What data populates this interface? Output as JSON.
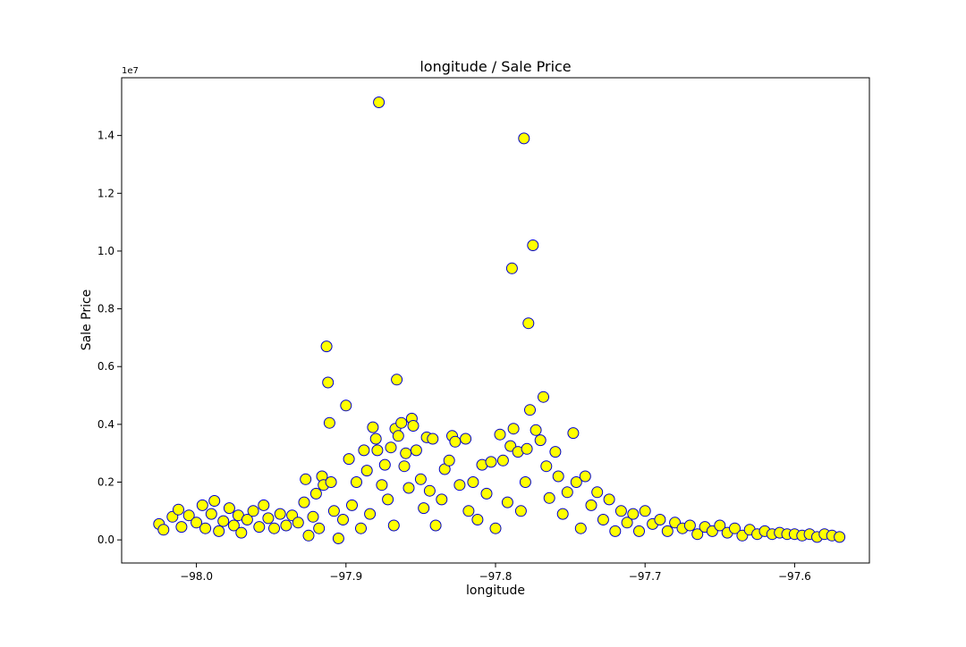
{
  "chart_data": {
    "type": "scatter",
    "title": "longitude / Sale Price",
    "xlabel": "longitude",
    "ylabel": "Sale Price",
    "y_offset_label": "1e7",
    "xlim": [
      -98.05,
      -97.55
    ],
    "ylim": [
      -0.08,
      1.6
    ],
    "x_ticks": [
      -98.0,
      -97.9,
      -97.8,
      -97.7,
      -97.6
    ],
    "x_tick_labels": [
      "−98.0",
      "−97.9",
      "−97.8",
      "−97.7",
      "−97.6"
    ],
    "y_ticks": [
      0.0,
      0.2,
      0.4,
      0.6,
      0.8,
      1.0,
      1.2,
      1.4
    ],
    "y_tick_labels": [
      "0.0",
      "0.2",
      "0.4",
      "0.6",
      "0.8",
      "1.0",
      "1.2",
      "1.4"
    ],
    "grid": false,
    "marker_fill": "#ffff00",
    "marker_edge": "#0000cc",
    "points": [
      [
        -98.025,
        0.055
      ],
      [
        -98.022,
        0.035
      ],
      [
        -98.016,
        0.08
      ],
      [
        -98.012,
        0.105
      ],
      [
        -98.01,
        0.045
      ],
      [
        -98.005,
        0.085
      ],
      [
        -98.0,
        0.06
      ],
      [
        -97.996,
        0.12
      ],
      [
        -97.994,
        0.04
      ],
      [
        -97.99,
        0.09
      ],
      [
        -97.988,
        0.135
      ],
      [
        -97.985,
        0.03
      ],
      [
        -97.982,
        0.065
      ],
      [
        -97.978,
        0.11
      ],
      [
        -97.975,
        0.05
      ],
      [
        -97.972,
        0.085
      ],
      [
        -97.97,
        0.025
      ],
      [
        -97.966,
        0.07
      ],
      [
        -97.962,
        0.1
      ],
      [
        -97.958,
        0.045
      ],
      [
        -97.955,
        0.12
      ],
      [
        -97.952,
        0.075
      ],
      [
        -97.948,
        0.04
      ],
      [
        -97.944,
        0.09
      ],
      [
        -97.94,
        0.05
      ],
      [
        -97.936,
        0.085
      ],
      [
        -97.932,
        0.06
      ],
      [
        -97.928,
        0.13
      ],
      [
        -97.927,
        0.21
      ],
      [
        -97.925,
        0.015
      ],
      [
        -97.922,
        0.08
      ],
      [
        -97.92,
        0.16
      ],
      [
        -97.918,
        0.04
      ],
      [
        -97.916,
        0.22
      ],
      [
        -97.915,
        0.19
      ],
      [
        -97.913,
        0.67
      ],
      [
        -97.912,
        0.545
      ],
      [
        -97.911,
        0.405
      ],
      [
        -97.91,
        0.2
      ],
      [
        -97.908,
        0.1
      ],
      [
        -97.905,
        0.005
      ],
      [
        -97.902,
        0.07
      ],
      [
        -97.9,
        0.465
      ],
      [
        -97.898,
        0.28
      ],
      [
        -97.896,
        0.12
      ],
      [
        -97.893,
        0.2
      ],
      [
        -97.89,
        0.04
      ],
      [
        -97.888,
        0.31
      ],
      [
        -97.886,
        0.24
      ],
      [
        -97.884,
        0.09
      ],
      [
        -97.882,
        0.39
      ],
      [
        -97.88,
        0.35
      ],
      [
        -97.879,
        0.31
      ],
      [
        -97.878,
        1.515
      ],
      [
        -97.876,
        0.19
      ],
      [
        -97.874,
        0.26
      ],
      [
        -97.872,
        0.14
      ],
      [
        -97.87,
        0.32
      ],
      [
        -97.868,
        0.05
      ],
      [
        -97.867,
        0.385
      ],
      [
        -97.866,
        0.555
      ],
      [
        -97.865,
        0.36
      ],
      [
        -97.863,
        0.405
      ],
      [
        -97.861,
        0.255
      ],
      [
        -97.86,
        0.3
      ],
      [
        -97.858,
        0.18
      ],
      [
        -97.856,
        0.42
      ],
      [
        -97.855,
        0.395
      ],
      [
        -97.853,
        0.31
      ],
      [
        -97.85,
        0.21
      ],
      [
        -97.848,
        0.11
      ],
      [
        -97.846,
        0.355
      ],
      [
        -97.844,
        0.17
      ],
      [
        -97.842,
        0.35
      ],
      [
        -97.84,
        0.05
      ],
      [
        -97.836,
        0.14
      ],
      [
        -97.834,
        0.245
      ],
      [
        -97.831,
        0.275
      ],
      [
        -97.829,
        0.36
      ],
      [
        -97.827,
        0.34
      ],
      [
        -97.824,
        0.19
      ],
      [
        -97.82,
        0.35
      ],
      [
        -97.818,
        0.1
      ],
      [
        -97.815,
        0.2
      ],
      [
        -97.812,
        0.07
      ],
      [
        -97.809,
        0.26
      ],
      [
        -97.806,
        0.16
      ],
      [
        -97.803,
        0.27
      ],
      [
        -97.8,
        0.04
      ],
      [
        -97.797,
        0.365
      ],
      [
        -97.795,
        0.275
      ],
      [
        -97.792,
        0.13
      ],
      [
        -97.79,
        0.325
      ],
      [
        -97.789,
        0.94
      ],
      [
        -97.788,
        0.385
      ],
      [
        -97.785,
        0.305
      ],
      [
        -97.783,
        0.1
      ],
      [
        -97.781,
        1.39
      ],
      [
        -97.78,
        0.2
      ],
      [
        -97.779,
        0.315
      ],
      [
        -97.778,
        0.75
      ],
      [
        -97.777,
        0.45
      ],
      [
        -97.775,
        1.02
      ],
      [
        -97.773,
        0.38
      ],
      [
        -97.77,
        0.345
      ],
      [
        -97.768,
        0.495
      ],
      [
        -97.766,
        0.255
      ],
      [
        -97.764,
        0.145
      ],
      [
        -97.76,
        0.305
      ],
      [
        -97.758,
        0.22
      ],
      [
        -97.755,
        0.09
      ],
      [
        -97.752,
        0.165
      ],
      [
        -97.748,
        0.37
      ],
      [
        -97.746,
        0.2
      ],
      [
        -97.743,
        0.04
      ],
      [
        -97.74,
        0.22
      ],
      [
        -97.736,
        0.12
      ],
      [
        -97.732,
        0.165
      ],
      [
        -97.728,
        0.07
      ],
      [
        -97.724,
        0.14
      ],
      [
        -97.72,
        0.03
      ],
      [
        -97.716,
        0.1
      ],
      [
        -97.712,
        0.06
      ],
      [
        -97.708,
        0.09
      ],
      [
        -97.704,
        0.03
      ],
      [
        -97.7,
        0.1
      ],
      [
        -97.695,
        0.055
      ],
      [
        -97.69,
        0.07
      ],
      [
        -97.685,
        0.03
      ],
      [
        -97.68,
        0.06
      ],
      [
        -97.675,
        0.04
      ],
      [
        -97.67,
        0.05
      ],
      [
        -97.665,
        0.02
      ],
      [
        -97.66,
        0.045
      ],
      [
        -97.655,
        0.03
      ],
      [
        -97.65,
        0.05
      ],
      [
        -97.645,
        0.025
      ],
      [
        -97.64,
        0.04
      ],
      [
        -97.635,
        0.015
      ],
      [
        -97.63,
        0.035
      ],
      [
        -97.625,
        0.02
      ],
      [
        -97.62,
        0.03
      ],
      [
        -97.615,
        0.02
      ],
      [
        -97.61,
        0.025
      ],
      [
        -97.605,
        0.02
      ],
      [
        -97.6,
        0.02
      ],
      [
        -97.595,
        0.015
      ],
      [
        -97.59,
        0.02
      ],
      [
        -97.585,
        0.01
      ],
      [
        -97.58,
        0.02
      ],
      [
        -97.575,
        0.015
      ],
      [
        -97.57,
        0.01
      ]
    ]
  }
}
